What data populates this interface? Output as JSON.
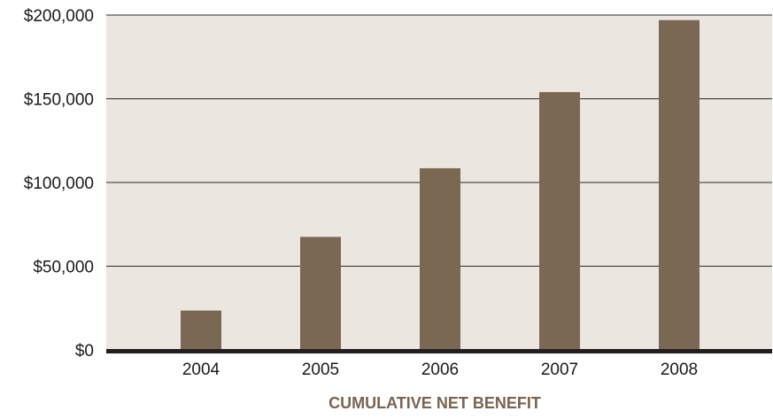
{
  "colors": {
    "plot_background": "#ebe6e0",
    "bar": "#7b6853",
    "gridline": "#2e2a26",
    "baseline": "#231f20",
    "axis_title": "#7a6450",
    "tick_text": "#1a1a1a"
  },
  "chart_data": {
    "type": "bar",
    "title": "",
    "xlabel": "CUMULATIVE NET BENEFIT",
    "ylabel": "",
    "categories": [
      "2004",
      "2005",
      "2006",
      "2007",
      "2008"
    ],
    "values": [
      23500,
      67500,
      108500,
      154000,
      197000
    ],
    "ylim": [
      0,
      200000
    ],
    "yticks": [
      0,
      50000,
      100000,
      150000,
      200000
    ],
    "ytick_labels": [
      "$0",
      "$50,000",
      "$100,000",
      "$150,000",
      "$200,000"
    ],
    "grid": true,
    "legend": "none"
  }
}
